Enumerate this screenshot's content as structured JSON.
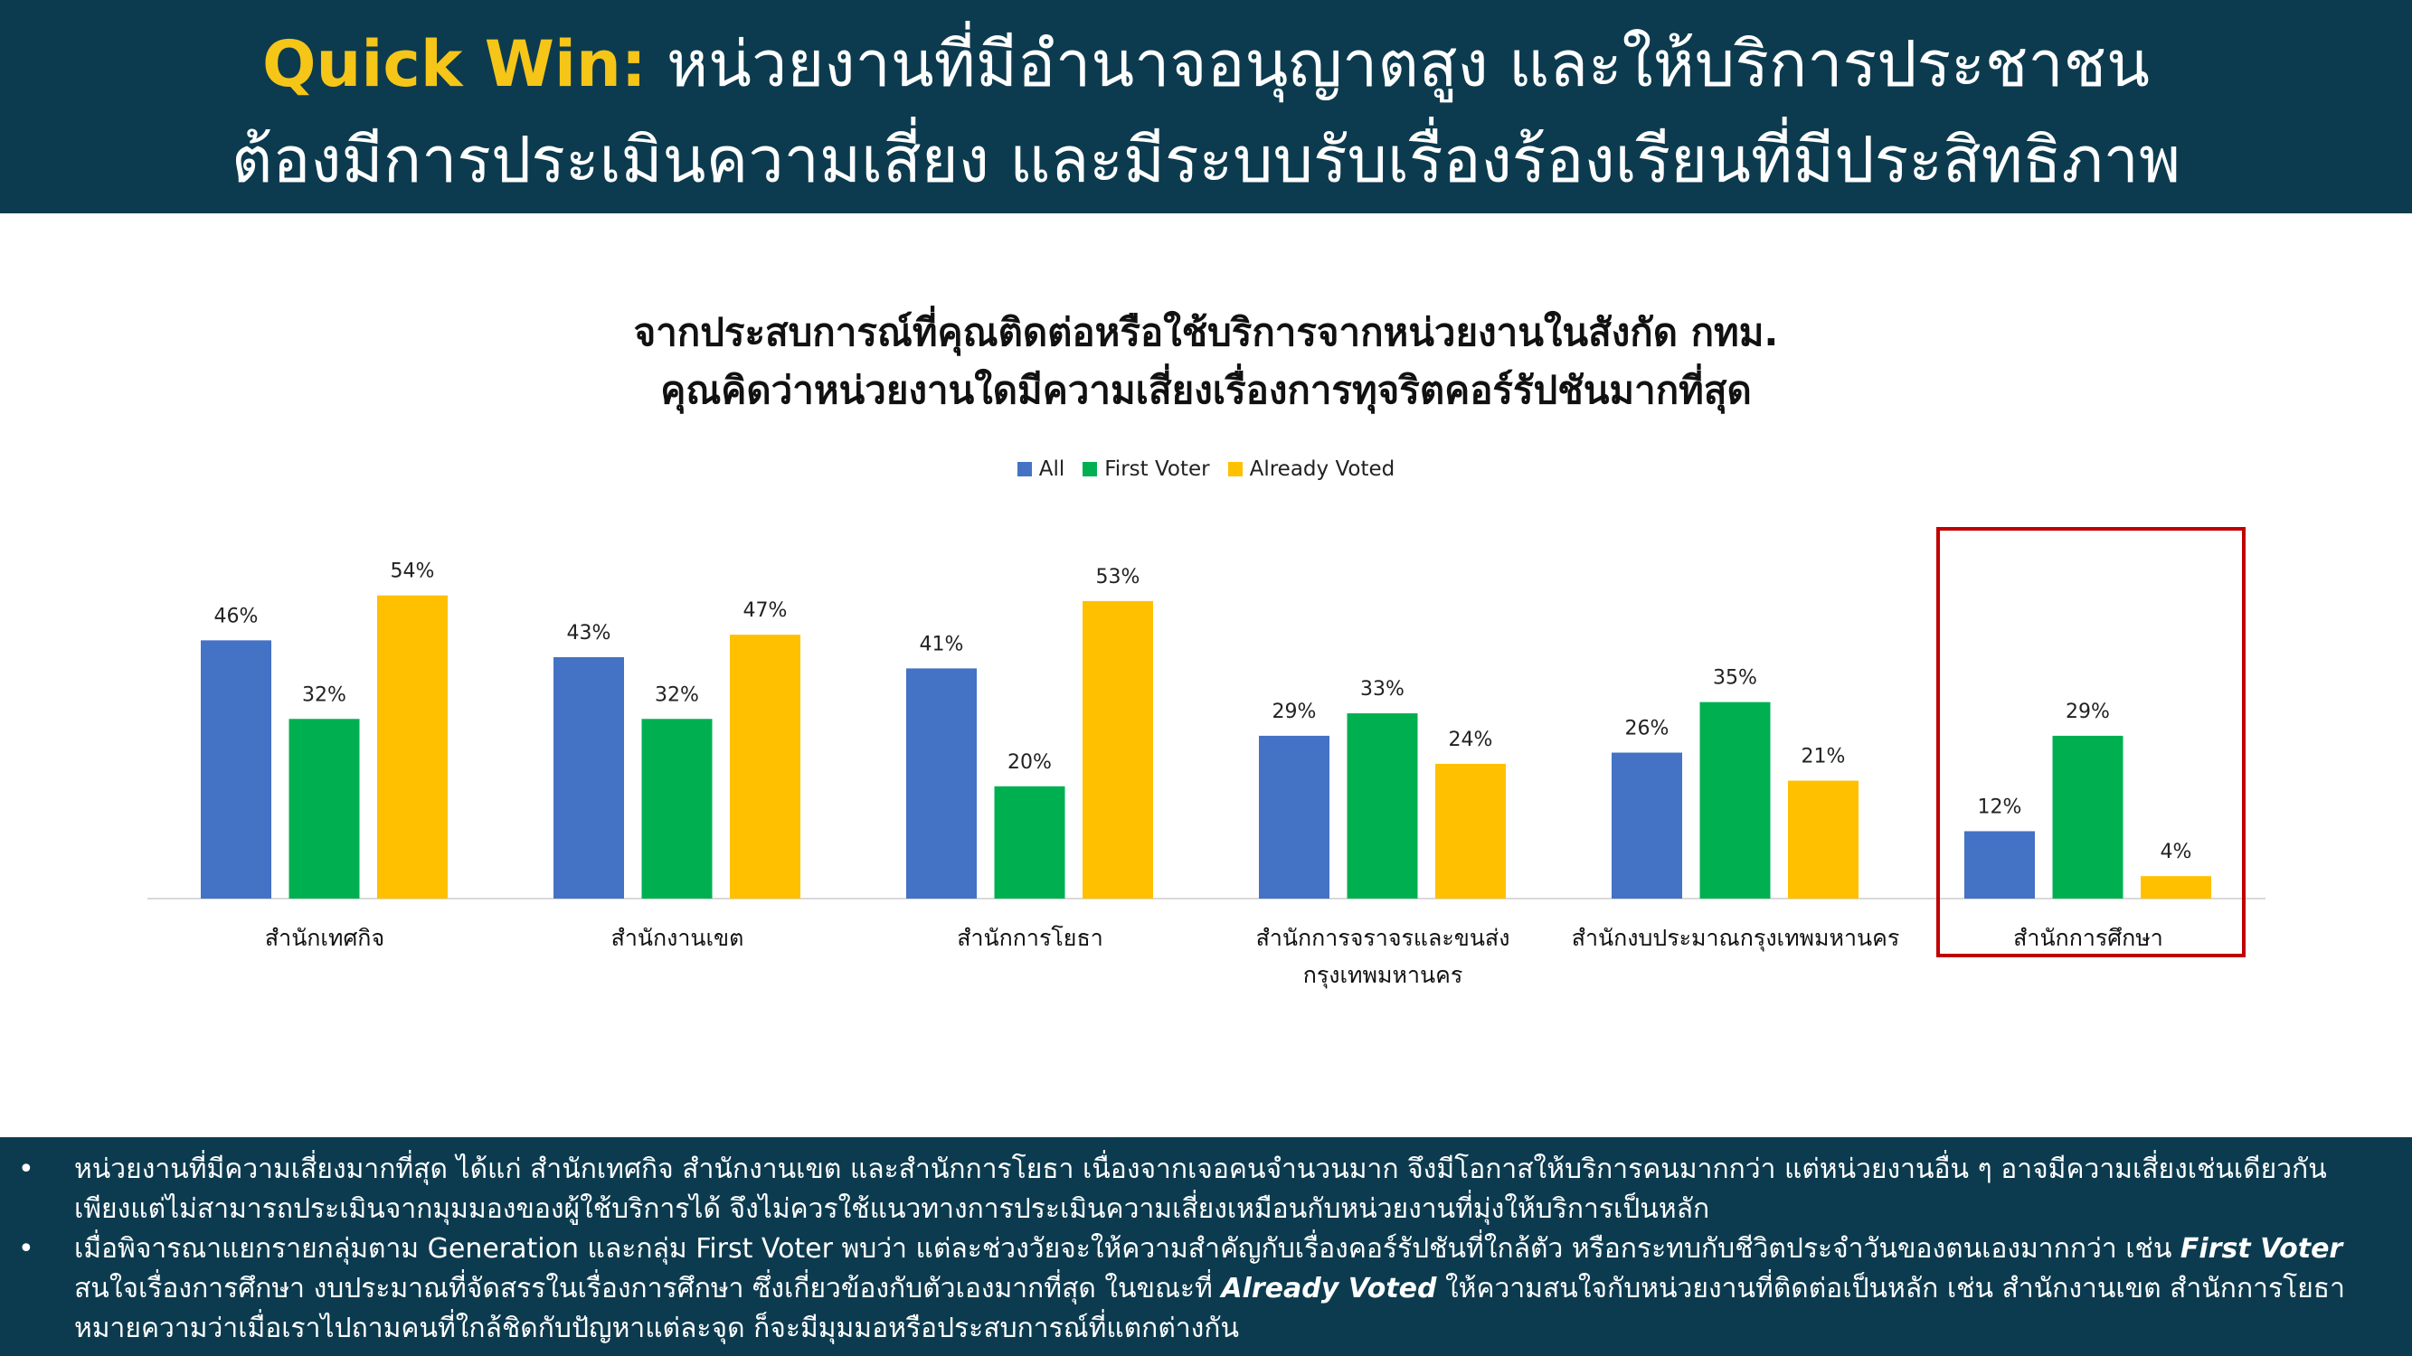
{
  "header": {
    "highlight": "Quick Win:",
    "line1_rest": " หน่วยงานที่มีอำนาจอนุญาตสูง และให้บริการประชาชน",
    "line2": "ต้องมีการประเมินความเสี่ยง และมีระบบรับเรื่องร้องเรียนที่มีประสิทธิภาพ"
  },
  "chart_data": {
    "type": "bar",
    "title": "จากประสบการณ์ที่คุณติดต่อหรือใช้บริการจากหน่วยงานในสังกัด กทม.",
    "subtitle": "คุณคิดว่าหน่วยงานใดมีความเสี่ยงเรื่องการทุจริตคอร์รัปชันมากที่สุด",
    "categories": [
      [
        "สำนักเทศกิจ"
      ],
      [
        "สำนักงานเขต"
      ],
      [
        "สำนักการโยธา"
      ],
      [
        "สำนักการจราจรและขนส่ง",
        "กรุงเทพมหานคร"
      ],
      [
        "สำนักงบประมาณกรุงเทพมหานคร"
      ],
      [
        "สำนักการศึกษา"
      ]
    ],
    "series": [
      {
        "name": "All",
        "color": "#4472c4",
        "values": [
          46,
          43,
          41,
          29,
          26,
          12
        ]
      },
      {
        "name": "First Voter",
        "color": "#00b050",
        "values": [
          32,
          32,
          20,
          33,
          35,
          29
        ]
      },
      {
        "name": "Already Voted",
        "color": "#ffc000",
        "values": [
          54,
          47,
          53,
          24,
          21,
          4
        ]
      }
    ],
    "value_suffix": "%",
    "ylim": [
      0,
      60
    ],
    "grid": false,
    "legend": "top-center",
    "highlighted_category": "สำนักการศึกษา"
  },
  "notes": [
    {
      "segments": [
        {
          "text": "หน่วยงานที่มีความเสี่ยงมากที่สุด ได้แก่ สำนักเทศกิจ สำนักงานเขต  และสำนักการโยธา เนื่องจากเจอคนจำนวนมาก จึงมีโอกาสให้บริการคนมากกว่า แต่หน่วยงานอื่น ๆ อาจมีความเสี่ยงเช่นเดียวกัน เพียงแต่ไม่สามารถประเมินจากมุมมองของผู้ใช้บริการได้ จึงไม่ควรใช้แนวทางการประเมินความเสี่ยงเหมือนกับหน่วยงานที่มุ่งให้บริการเป็นหลัก",
          "bold": false
        }
      ]
    },
    {
      "segments": [
        {
          "text": "เมื่อพิจารณาแยกรายกลุ่มตาม Generation และกลุ่ม First Voter พบว่า แต่ละช่วงวัยจะให้ความสำคัญกับเรื่องคอร์รัปชันที่ใกล้ตัว หรือกระทบกับชีวิตประจำวันของตนเองมากกว่า เช่น ",
          "bold": false
        },
        {
          "text": "First Voter",
          "bold": true
        },
        {
          "text": " สนใจเรื่องการศึกษา งบประมาณที่จัดสรรในเรื่องการศึกษา  ซึ่งเกี่ยวข้องกับตัวเองมากที่สุด ในขณะที่ ",
          "bold": false
        },
        {
          "text": "Already Voted",
          "bold": true
        },
        {
          "text": " ให้ความสนใจกับหน่วยงานที่ติดต่อเป็นหลัก เช่น สำนักงานเขต สำนักการโยธา หมายความว่าเมื่อเราไปถามคนที่ใกล้ชิดกับปัญหาแต่ละจุด ก็จะมีมุมมอหรือประสบการณ์ที่แตกต่างกัน",
          "bold": false
        }
      ]
    }
  ],
  "bullet_symbol": "•"
}
